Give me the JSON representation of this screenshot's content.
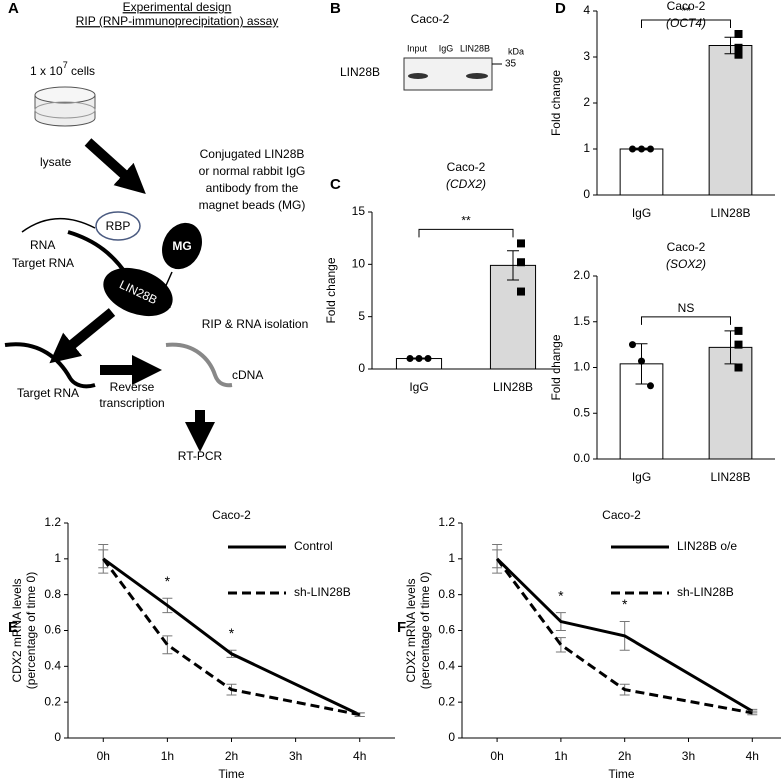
{
  "panel_a": {
    "label": "A",
    "title": "Experimental design",
    "subtitle": "RIP (RNP-immunoprecipitation) assay",
    "cells": [
      "1 x 10",
      "7",
      " cells"
    ],
    "lysate": "lysate",
    "antibody": [
      "Conjugated LIN28B",
      "or normal rabbit IgG",
      "antibody from the",
      "magnet beads (MG)"
    ],
    "rna": "RNA",
    "rbp": "RBP",
    "mg": "MG",
    "target_rna": "Target RNA",
    "lin28b": "LIN28B",
    "rip": "RIP & RNA isolation",
    "target_rna_2": "Target RNA",
    "reverse": [
      "Reverse",
      "transcription"
    ],
    "cdna": "cDNA",
    "rtpcr": "RT-PCR"
  },
  "panel_b": {
    "label": "B",
    "title": "Caco-2",
    "lanes": [
      "Input",
      "IgG",
      "LIN28B"
    ],
    "kda": "kDa",
    "marker": "35",
    "row": "LIN28B"
  },
  "chart_data": [
    {
      "type": "bar",
      "panel": "C",
      "title": "Caco-2",
      "subtitle": "(CDX2)",
      "ylabel": "Fold change",
      "categories": [
        "IgG",
        "LIN28B"
      ],
      "values": [
        1.0,
        9.9
      ],
      "errors": [
        0.05,
        1.4
      ],
      "points": [
        [
          1.0,
          1.0,
          1.0
        ],
        [
          12.0,
          10.2,
          7.4
        ]
      ],
      "colors": [
        "#ffffff",
        "#d9d9d9"
      ],
      "ylim": [
        0,
        15
      ],
      "yticks": [
        0,
        5,
        10,
        15
      ],
      "significance": "**"
    },
    {
      "type": "bar",
      "panel": "D",
      "title": "Caco-2",
      "subtitle": "(OCT4)",
      "ylabel": "Fold change",
      "categories": [
        "IgG",
        "LIN28B"
      ],
      "values": [
        1.0,
        3.25
      ],
      "errors": [
        0.02,
        0.18
      ],
      "points": [
        [
          1.0,
          1.0,
          1.0
        ],
        [
          3.5,
          3.2,
          3.05
        ]
      ],
      "colors": [
        "#ffffff",
        "#d9d9d9"
      ],
      "ylim": [
        0,
        4
      ],
      "yticks": [
        0,
        1,
        2,
        3,
        4
      ],
      "significance": "**"
    },
    {
      "type": "bar",
      "title": "Caco-2",
      "subtitle": "(SOX2)",
      "ylabel": "Fold change",
      "categories": [
        "IgG",
        "LIN28B"
      ],
      "values": [
        1.04,
        1.22
      ],
      "errors": [
        0.22,
        0.18
      ],
      "points": [
        [
          1.25,
          1.07,
          0.8
        ],
        [
          1.4,
          1.25,
          1.0
        ]
      ],
      "colors": [
        "#ffffff",
        "#d9d9d9"
      ],
      "ylim": [
        0,
        2
      ],
      "yticks": [
        {
          "value": 0,
          "label": "0.0"
        },
        0.5,
        {
          "value": 1,
          "label": "1.0"
        },
        1.5,
        {
          "value": 2,
          "label": "2.0"
        }
      ],
      "significance": "NS"
    },
    {
      "type": "line",
      "panel": "E",
      "title": "Caco-2",
      "ylabel": [
        "CDX2 mRNA levels",
        "(percentage of time 0)"
      ],
      "xlabel": "Time",
      "x": [
        0,
        1,
        2,
        4
      ],
      "series": [
        {
          "name": "Control",
          "color": "#000000",
          "dash": "solid",
          "values": [
            1.0,
            0.74,
            0.47,
            0.13
          ],
          "errors": [
            0.05,
            0.04,
            0.02,
            0.01
          ]
        },
        {
          "name": "sh-LIN28B",
          "color": "#000000",
          "dash": "dashed",
          "values": [
            1.0,
            0.52,
            0.27,
            0.13
          ],
          "errors": [
            0.08,
            0.05,
            0.03,
            0.01
          ]
        }
      ],
      "xlim": [
        -0.55,
        4.55
      ],
      "xticks": [
        {
          "value": 0,
          "label": "0h"
        },
        {
          "value": 1,
          "label": "1h"
        },
        {
          "value": 2,
          "label": "2h"
        },
        {
          "value": 3,
          "label": "3h"
        },
        {
          "value": 4,
          "label": "4h"
        }
      ],
      "ylim": [
        0,
        1.2
      ],
      "yticks": [
        0,
        0.2,
        0.4,
        0.6,
        0.8,
        1,
        1.2
      ],
      "stars": [
        {
          "x": 1,
          "text": "*"
        },
        {
          "x": 2,
          "text": "*"
        }
      ]
    },
    {
      "type": "line",
      "panel": "F",
      "title": "Caco-2",
      "ylabel": [
        "CDX2 mRNA levels",
        "(percentage of time 0)"
      ],
      "xlabel": "Time",
      "x": [
        0,
        1,
        2,
        4
      ],
      "series": [
        {
          "name": "LIN28B o/e",
          "color": "#000000",
          "dash": "solid",
          "values": [
            1.0,
            0.65,
            0.57,
            0.15
          ],
          "errors": [
            0.08,
            0.05,
            0.08,
            0.01
          ]
        },
        {
          "name": "sh-LIN28B",
          "color": "#000000",
          "dash": "dashed",
          "values": [
            1.0,
            0.52,
            0.27,
            0.14
          ],
          "errors": [
            0.05,
            0.04,
            0.03,
            0.01
          ]
        }
      ],
      "xlim": [
        -0.55,
        4.45
      ],
      "xticks": [
        {
          "value": 0,
          "label": "0h"
        },
        {
          "value": 1,
          "label": "1h"
        },
        {
          "value": 2,
          "label": "2h"
        },
        {
          "value": 3,
          "label": "3h"
        },
        {
          "value": 4,
          "label": "4h"
        }
      ],
      "ylim": [
        0,
        1.2
      ],
      "yticks": [
        0,
        0.2,
        0.4,
        0.6,
        0.8,
        1,
        1.2
      ],
      "stars": [
        {
          "x": 1,
          "text": "*"
        },
        {
          "x": 2,
          "text": "*"
        }
      ]
    }
  ]
}
